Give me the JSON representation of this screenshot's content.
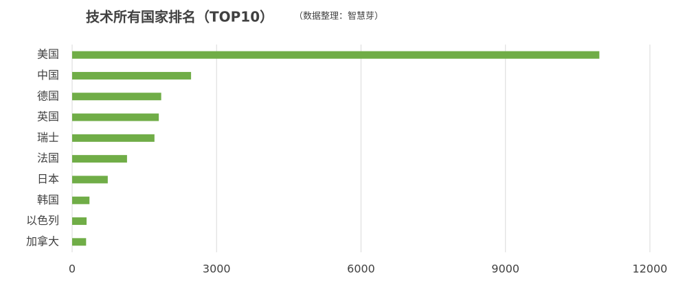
{
  "chart_data": {
    "type": "bar",
    "orientation": "horizontal",
    "title": "技术所有国家排名（TOP10）",
    "subtitle": "（数据整理：智慧芽）",
    "categories": [
      "美国",
      "中国",
      "德国",
      "英国",
      "瑞士",
      "法国",
      "日本",
      "韩国",
      "以色列",
      "加拿大"
    ],
    "values": [
      10950,
      2470,
      1850,
      1800,
      1710,
      1140,
      740,
      360,
      300,
      290
    ],
    "color": "#70ad47",
    "xlim": [
      0,
      12000
    ],
    "xticks": [
      0,
      3000,
      6000,
      9000,
      12000
    ],
    "grid": true
  }
}
